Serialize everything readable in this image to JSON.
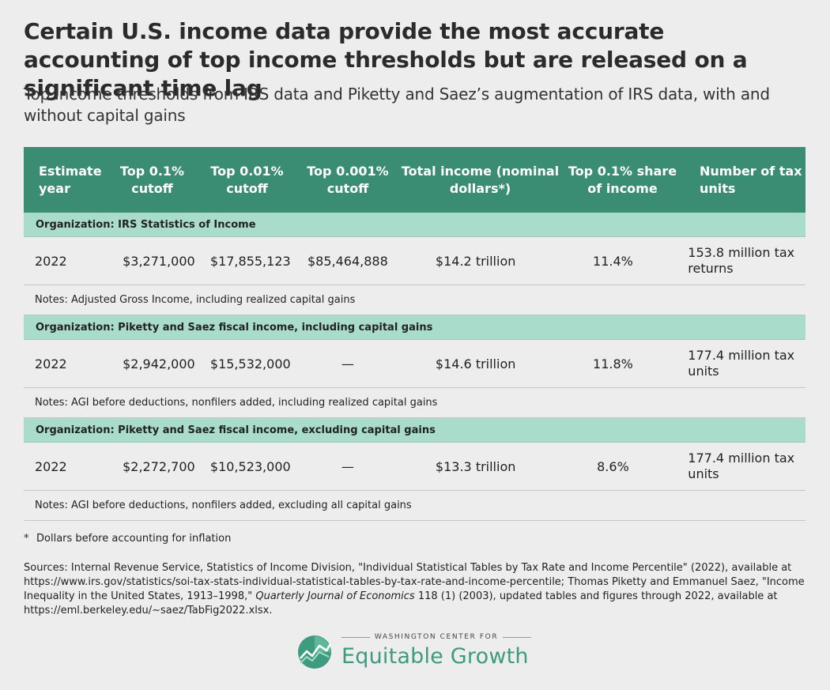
{
  "title": "Certain U.S. income data provide the most accurate accounting of top income thresholds but are released on a significant time lag",
  "subtitle": "Top income thresholds from IRS data and Piketty and Saez’s augmentation of IRS data, with and without capital gains",
  "colors": {
    "header_bg": "#3a8d73",
    "org_bg": "#a9dccb",
    "brand": "#3d9b7f",
    "page_bg": "#ededed"
  },
  "table": {
    "headers": [
      "Estimate year",
      "Top 0.1% cutoff",
      "Top 0.01% cutoff",
      "Top 0.001% cutoff",
      "Total income (nominal dollars*)",
      "Top 0.1% share of income",
      "Number of tax units"
    ],
    "sections": [
      {
        "organization": "Organization: IRS Statistics of Income",
        "row": [
          "2022",
          "$3,271,000",
          "$17,855,123",
          "$85,464,888",
          "$14.2 trillion",
          "11.4%",
          "153.8 million tax returns"
        ],
        "notes": "Notes: Adjusted Gross Income, including realized capital gains"
      },
      {
        "organization": "Organization: Piketty and Saez fiscal income, including capital gains",
        "row": [
          "2022",
          "$2,942,000",
          "$15,532,000",
          "—",
          "$14.6 trillion",
          "11.8%",
          "177.4 million tax units"
        ],
        "notes": "Notes: AGI before deductions, nonfilers added, including realized capital gains"
      },
      {
        "organization": "Organization: Piketty and Saez fiscal income, excluding capital gains",
        "row": [
          "2022",
          "$2,272,700",
          "$10,523,000",
          "—",
          "$13.3 trillion",
          "8.6%",
          "177.4 million tax units"
        ],
        "notes": "Notes: AGI before deductions, nonfilers added, excluding all capital gains"
      }
    ]
  },
  "footnote": {
    "marker": "*",
    "text": "Dollars before accounting for inflation"
  },
  "sources": {
    "part1": "Sources: Internal Revenue Service, Statistics of Income Division, \"Individual Statistical Tables by Tax Rate and Income Percentile\" (2022), available at https://www.irs.gov/statistics/soi-tax-stats-individual-statistical-tables-by-tax-rate-and-income-percentile; Thomas Piketty and Emmanuel Saez, \"Income Inequality in the United States, 1913–1998,\" ",
    "journal": "Quarterly Journal of Economics",
    "part2": " 118 (1) (2003), updated tables and figures through 2022, available at https://eml.berkeley.edu/~saez/TabFig2022.xlsx."
  },
  "logo": {
    "top_line": "WASHINGTON CENTER FOR",
    "name": "Equitable Growth",
    "icon": "growth-chart-leaf-icon"
  }
}
